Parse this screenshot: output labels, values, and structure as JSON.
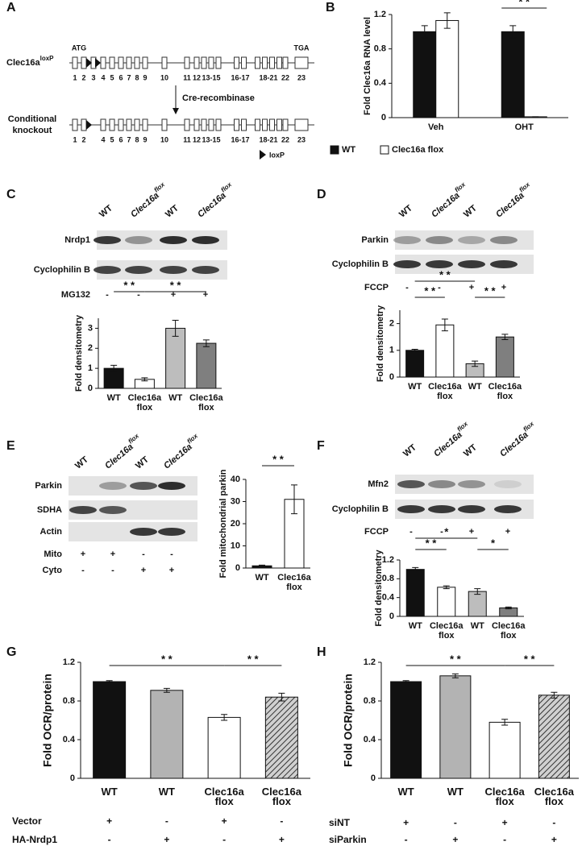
{
  "panel_labels": [
    "A",
    "B",
    "C",
    "D",
    "E",
    "F",
    "G",
    "H"
  ],
  "gene_map": {
    "label": "Clec16a",
    "label_sup": "loxP",
    "start": "ATG",
    "stop": "TGA",
    "exons": [
      "1",
      "2",
      "3",
      "4",
      "5",
      "6",
      "7",
      "8",
      "9",
      "10",
      "11",
      "12",
      "13-15",
      "16-17",
      "18-21",
      "22",
      "23"
    ],
    "step": "Cre-recombinase",
    "knockout_label": [
      "Conditional",
      "knockout"
    ],
    "knockout_exons": [
      "1",
      "2",
      "4",
      "5",
      "6",
      "7",
      "8",
      "9",
      "10",
      "11",
      "12",
      "13-15",
      "16-17",
      "18-21",
      "22",
      "23"
    ],
    "legend": "loxP"
  },
  "blots": [
    {
      "lanes": [
        {
          "name": "WT"
        },
        {
          "name": "Clec16a",
          "sup": "flox"
        },
        {
          "name": "WT"
        },
        {
          "name": "Clec16a",
          "sup": "flox"
        }
      ],
      "rows": [
        "Nrdp1",
        "Cyclophilin B"
      ],
      "treatments": [
        {
          "name": "MG132",
          "signs": [
            "-",
            "-",
            "+",
            "+"
          ]
        }
      ]
    },
    {
      "lanes": [
        {
          "name": "WT"
        },
        {
          "name": "Clec16a",
          "sup": "flox"
        },
        {
          "name": "WT"
        },
        {
          "name": "Clec16a",
          "sup": "flox"
        }
      ],
      "rows": [
        "Parkin",
        "Cyclophilin B"
      ],
      "treatments": [
        {
          "name": "FCCP",
          "signs": [
            "-",
            "-",
            "+",
            "+"
          ]
        }
      ]
    },
    {
      "lanes": [
        {
          "name": "WT"
        },
        {
          "name": "Clec16a",
          "sup": "flox"
        },
        {
          "name": "WT"
        },
        {
          "name": "Clec16a",
          "sup": "flox"
        }
      ],
      "rows": [
        "Parkin",
        "SDHA",
        "Actin"
      ],
      "treatments": [
        {
          "name": "Mito",
          "signs": [
            "+",
            "+",
            "-",
            "-"
          ]
        },
        {
          "name": "Cyto",
          "signs": [
            "-",
            "-",
            "+",
            "+"
          ]
        }
      ]
    },
    {
      "lanes": [
        {
          "name": "WT"
        },
        {
          "name": "Clec16a",
          "sup": "flox"
        },
        {
          "name": "WT"
        },
        {
          "name": "Clec16a",
          "sup": "flox"
        }
      ],
      "rows": [
        "Mfn2",
        "Cyclophilin B"
      ],
      "treatments": [
        {
          "name": "FCCP",
          "signs": [
            "-",
            "-",
            "+",
            "+"
          ]
        }
      ]
    }
  ],
  "chart_data": [
    {
      "type": "bar",
      "ylabel": "Fold Clec16a RNA level",
      "categories": [
        "Veh",
        "OHT"
      ],
      "series": [
        {
          "name": "WT",
          "color": "#111111",
          "values": [
            1.0,
            1.0
          ],
          "errors": [
            0.07,
            0.07
          ]
        },
        {
          "name": "Clec16a flox",
          "color": "#ffffff",
          "values": [
            1.13,
            0.01
          ],
          "errors": [
            0.09,
            0.0
          ]
        }
      ],
      "ylim": [
        0,
        1.2
      ],
      "yticks": [
        0,
        0.4,
        0.8,
        1.2
      ],
      "sig": [
        {
          "label": "* *",
          "between": [
            1,
            1
          ]
        }
      ]
    },
    {
      "type": "bar",
      "ylabel": "Fold densitometry",
      "categories": [
        "WT",
        "Clec16a flox",
        "WT",
        "Clec16a flox"
      ],
      "values": [
        1.0,
        0.45,
        3.0,
        2.25
      ],
      "errors": [
        0.15,
        0.08,
        0.4,
        0.17
      ],
      "colors": [
        "#111111",
        "#ffffff",
        "#bdbdbd",
        "#7f7f7f"
      ],
      "ylim": [
        0,
        3.5
      ],
      "yticks": [
        0,
        1,
        2,
        3
      ],
      "sig": [
        {
          "label": "* *",
          "between": [
            0,
            1
          ]
        },
        {
          "label": "* *",
          "between": [
            1,
            3
          ]
        }
      ]
    },
    {
      "type": "bar",
      "ylabel": "Fold densitometry",
      "categories": [
        "WT",
        "Clec16a flox",
        "WT",
        "Clec16a flox"
      ],
      "values": [
        1.0,
        1.95,
        0.5,
        1.5
      ],
      "errors": [
        0.04,
        0.22,
        0.1,
        0.1
      ],
      "colors": [
        "#111111",
        "#ffffff",
        "#bdbdbd",
        "#7f7f7f"
      ],
      "ylim": [
        0,
        2.5
      ],
      "yticks": [
        0,
        1,
        2
      ],
      "sig": [
        {
          "label": "* *",
          "between": [
            0,
            1
          ]
        },
        {
          "label": "* *",
          "between": [
            0,
            2
          ]
        },
        {
          "label": "* *",
          "between": [
            2,
            3
          ]
        }
      ]
    },
    {
      "type": "bar",
      "ylabel": "Fold mitochondrial parkin",
      "categories": [
        "WT",
        "Clec16a flox"
      ],
      "values": [
        1.0,
        31
      ],
      "errors": [
        0.3,
        6.5
      ],
      "colors": [
        "#111111",
        "#ffffff"
      ],
      "ylim": [
        0,
        40
      ],
      "yticks": [
        0,
        10,
        20,
        30,
        40
      ],
      "sig": [
        {
          "label": "* *",
          "between": [
            0,
            1
          ]
        }
      ]
    },
    {
      "type": "bar",
      "ylabel": "Fold densitometry",
      "categories": [
        "WT",
        "Clec16a flox",
        "WT",
        "Clec16a flox"
      ],
      "values": [
        1.0,
        0.62,
        0.53,
        0.18
      ],
      "errors": [
        0.04,
        0.03,
        0.06,
        0.02
      ],
      "colors": [
        "#111111",
        "#ffffff",
        "#bdbdbd",
        "#7f7f7f"
      ],
      "ylim": [
        0,
        1.2
      ],
      "yticks": [
        0,
        0.4,
        0.8,
        1.2
      ],
      "sig": [
        {
          "label": "* *",
          "between": [
            0,
            1
          ]
        },
        {
          "label": "*",
          "between": [
            0,
            2
          ]
        },
        {
          "label": "*",
          "between": [
            2,
            3
          ]
        }
      ]
    },
    {
      "type": "bar",
      "ylabel": "Fold OCR/protein",
      "categories": [
        "WT",
        "WT",
        "Clec16a flox",
        "Clec16a flox"
      ],
      "values": [
        1.0,
        0.91,
        0.63,
        0.84
      ],
      "errors": [
        0.01,
        0.02,
        0.03,
        0.04
      ],
      "colors": [
        "#111111",
        "#b3b3b3",
        "#ffffff",
        "hatch"
      ],
      "ylim": [
        0,
        1.2
      ],
      "yticks": [
        0,
        0.4,
        0.8,
        1.2
      ],
      "sig": [
        {
          "label": "* *",
          "between": [
            0,
            2
          ]
        },
        {
          "label": "* *",
          "between": [
            2,
            3
          ]
        }
      ],
      "treatments": [
        {
          "name": "Vector",
          "signs": [
            "+",
            "-",
            "+",
            "-"
          ]
        },
        {
          "name": "HA-Nrdp1",
          "signs": [
            "-",
            "+",
            "-",
            "+"
          ]
        }
      ]
    },
    {
      "type": "bar",
      "ylabel": "Fold OCR/protein",
      "categories": [
        "WT",
        "WT",
        "Clec16a flox",
        "Clec16a flox"
      ],
      "values": [
        1.0,
        1.06,
        0.58,
        0.86
      ],
      "errors": [
        0.01,
        0.02,
        0.03,
        0.03
      ],
      "colors": [
        "#111111",
        "#b3b3b3",
        "#ffffff",
        "hatch"
      ],
      "ylim": [
        0,
        1.2
      ],
      "yticks": [
        0,
        0.4,
        0.8,
        1.2
      ],
      "sig": [
        {
          "label": "* *",
          "between": [
            0,
            2
          ]
        },
        {
          "label": "* *",
          "between": [
            2,
            3
          ]
        }
      ],
      "treatments": [
        {
          "name": "siNT",
          "signs": [
            "+",
            "-",
            "+",
            "-"
          ]
        },
        {
          "name": "siParkin",
          "signs": [
            "-",
            "+",
            "-",
            "+"
          ]
        }
      ]
    }
  ]
}
